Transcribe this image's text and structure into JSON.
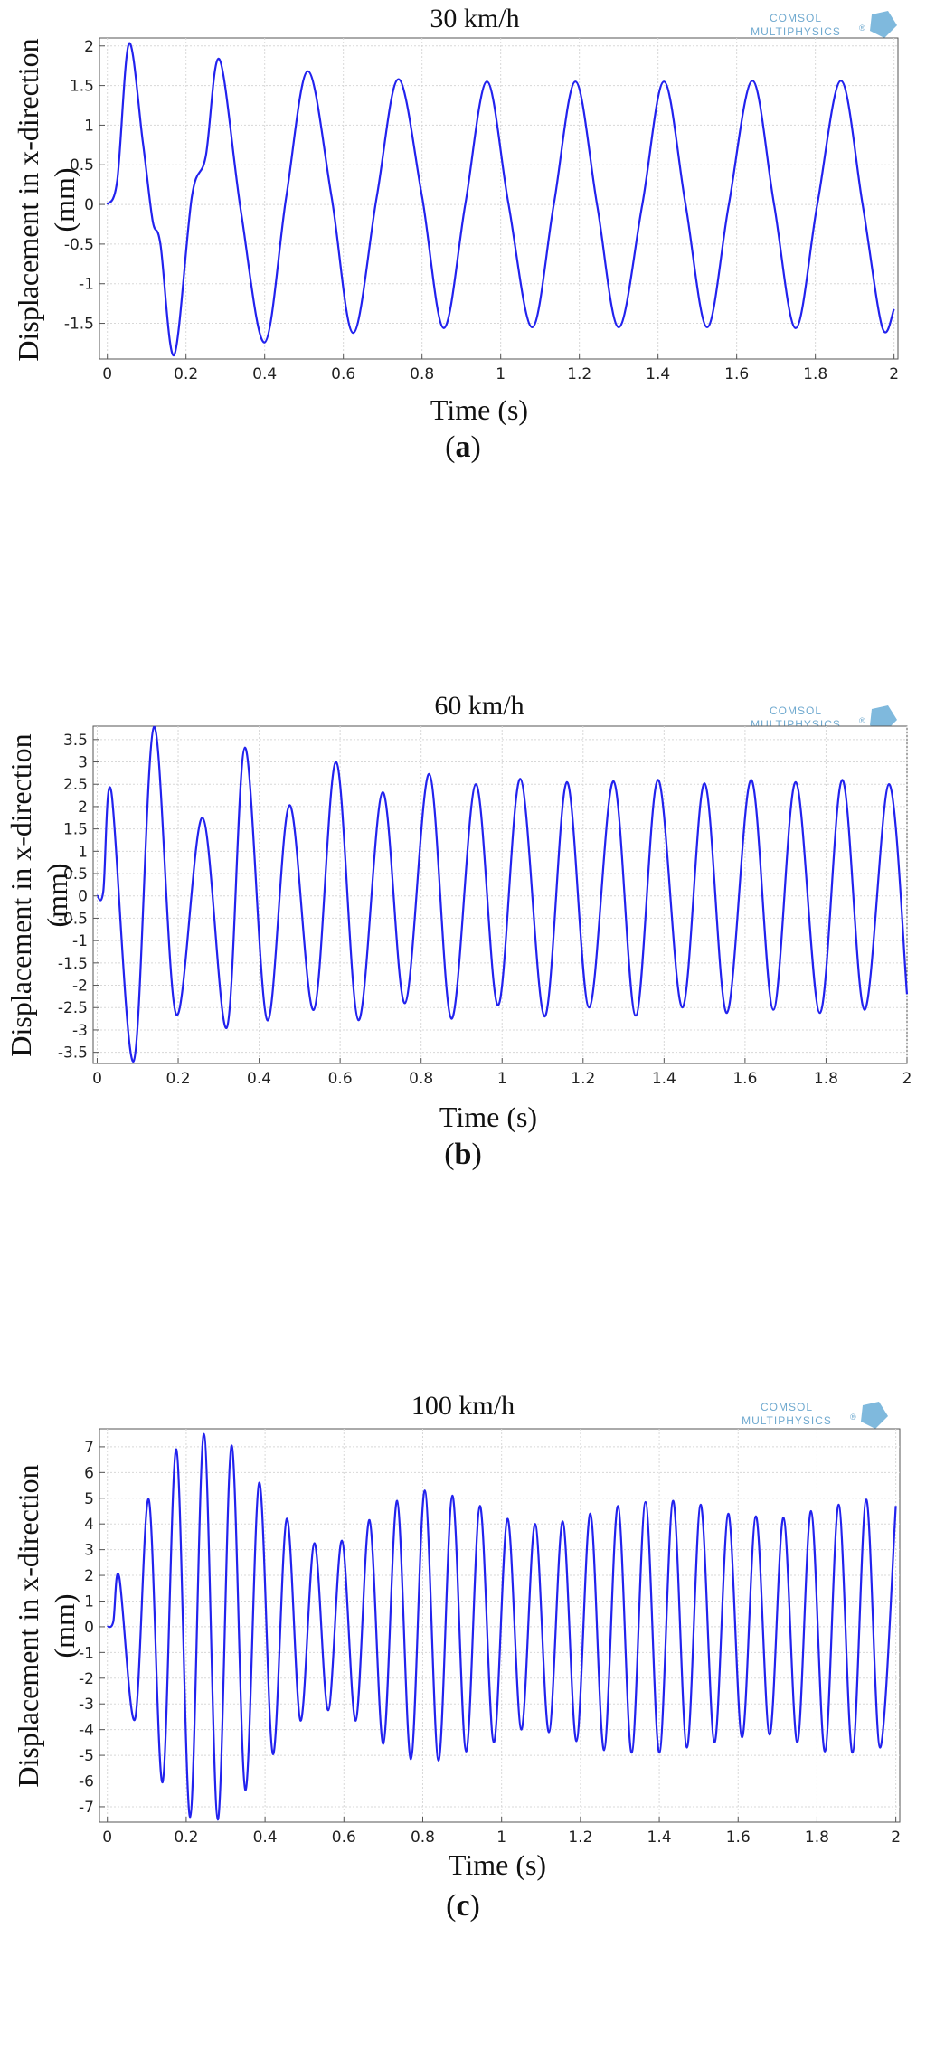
{
  "figure": {
    "ylabel_line1": "Displacement in x-direction",
    "ylabel_line2": "(mm)",
    "xlabel": "Time (s)",
    "logo_line1": "COMSOL",
    "logo_line2": "MULTIPHYSICS",
    "logo_mark": "®"
  },
  "colors": {
    "line": "#2222ee",
    "grid": "#d8d8d8",
    "axis": "#555555"
  },
  "chart_data": [
    {
      "type": "line",
      "title": "30 km/h",
      "caption_open": "(",
      "caption_letter": "a",
      "caption_close": ")",
      "xlabel": "Time (s)",
      "ylabel": "Displacement in x-direction (mm)",
      "xlim": [
        -0.02,
        2.01
      ],
      "ylim": [
        -1.95,
        2.1
      ],
      "xticks": [
        0,
        0.2,
        0.4,
        0.6,
        0.8,
        1,
        1.2,
        1.4,
        1.6,
        1.8,
        2
      ],
      "xtick_labels": [
        "0",
        "0.2",
        "0.4",
        "0.6",
        "0.8",
        "1",
        "1.2",
        "1.4",
        "1.6",
        "1.8",
        "2"
      ],
      "yticks": [
        -1.5,
        -1,
        -0.5,
        0,
        0.5,
        1,
        1.5,
        2
      ],
      "ytick_labels": [
        "-1.5",
        "-1",
        "-0.5",
        "0",
        "0.5",
        "1",
        "1.5",
        "2"
      ],
      "series": [
        {
          "name": "Displacement",
          "x": [
            0,
            0.025,
            0.055,
            0.09,
            0.115,
            0.135,
            0.17,
            0.215,
            0.25,
            0.285,
            0.34,
            0.4,
            0.455,
            0.51,
            0.57,
            0.625,
            0.685,
            0.74,
            0.8,
            0.855,
            0.91,
            0.965,
            1.02,
            1.08,
            1.135,
            1.19,
            1.245,
            1.3,
            1.36,
            1.415,
            1.47,
            1.525,
            1.58,
            1.64,
            1.695,
            1.75,
            1.805,
            1.865,
            1.92,
            1.97,
            2.0
          ],
          "y": [
            0,
            0.3,
            2.03,
            0.8,
            -0.2,
            -0.5,
            -1.9,
            0.1,
            0.6,
            1.83,
            -0.1,
            -1.74,
            0.1,
            1.68,
            0.1,
            -1.62,
            0.1,
            1.58,
            0.1,
            -1.56,
            0.0,
            1.55,
            0.0,
            -1.55,
            0.0,
            1.55,
            0.0,
            -1.55,
            0.0,
            1.55,
            0.0,
            -1.55,
            0.0,
            1.56,
            0.0,
            -1.56,
            0.0,
            1.56,
            0.0,
            -1.55,
            -1.32
          ]
        }
      ]
    },
    {
      "type": "line",
      "title": "60 km/h",
      "caption_open": "(",
      "caption_letter": "b",
      "caption_close": ")",
      "xlabel": "Time (s)",
      "ylabel": "Displacement in x-direction (mm)",
      "xlim": [
        -0.01,
        2.0
      ],
      "ylim": [
        -3.75,
        3.8
      ],
      "xticks": [
        0,
        0.2,
        0.4,
        0.6,
        0.8,
        1,
        1.2,
        1.4,
        1.6,
        1.8,
        2
      ],
      "xtick_labels": [
        "0",
        "0.2",
        "0.4",
        "0.6",
        "0.8",
        "1",
        "1.2",
        "1.4",
        "1.6",
        "1.8",
        "2"
      ],
      "yticks": [
        -3.5,
        -3,
        -2.5,
        -2,
        -1.5,
        -1,
        -0.5,
        0,
        0.5,
        1,
        1.5,
        2,
        2.5,
        3,
        3.5
      ],
      "ytick_labels": [
        "-3.5",
        "-3",
        "-2.5",
        "-2",
        "-1.5",
        "-1",
        "-0.5",
        "0",
        "0.5",
        "1",
        "1.5",
        "2",
        "2.5",
        "3",
        "3.5"
      ],
      "series": [
        {
          "name": "Displacement",
          "x": [
            0,
            0.015,
            0.035,
            0.09,
            0.14,
            0.195,
            0.26,
            0.32,
            0.365,
            0.42,
            0.475,
            0.535,
            0.59,
            0.645,
            0.705,
            0.76,
            0.82,
            0.875,
            0.935,
            0.99,
            1.045,
            1.105,
            1.16,
            1.215,
            1.275,
            1.33,
            1.385,
            1.445,
            1.5,
            1.555,
            1.615,
            1.67,
            1.725,
            1.785,
            1.84,
            1.895,
            1.955,
            2.0
          ],
          "y": [
            0,
            0.1,
            2.33,
            -3.7,
            3.78,
            -2.65,
            1.75,
            -2.95,
            3.32,
            -2.78,
            2.03,
            -2.55,
            3.0,
            -2.78,
            2.32,
            -2.4,
            2.73,
            -2.75,
            2.5,
            -2.45,
            2.62,
            -2.7,
            2.55,
            -2.5,
            2.57,
            -2.68,
            2.6,
            -2.5,
            2.52,
            -2.62,
            2.6,
            -2.55,
            2.55,
            -2.62,
            2.6,
            -2.55,
            2.5,
            -2.2
          ]
        }
      ]
    },
    {
      "type": "line",
      "title": "100 km/h",
      "caption_open": "(",
      "caption_letter": "c",
      "caption_close": ")",
      "xlabel": "Time (s)",
      "ylabel": "Displacement in x-direction (mm)",
      "xlim": [
        -0.02,
        2.01
      ],
      "ylim": [
        -7.6,
        7.7
      ],
      "xticks": [
        0,
        0.2,
        0.4,
        0.6,
        0.8,
        1,
        1.2,
        1.4,
        1.6,
        1.8,
        2
      ],
      "xtick_labels": [
        "0",
        "0.2",
        "0.4",
        "0.6",
        "0.8",
        "1",
        "1.2",
        "1.4",
        "1.6",
        "1.8",
        "2"
      ],
      "yticks": [
        -7,
        -6,
        -5,
        -4,
        -3,
        -2,
        -1,
        0,
        1,
        2,
        3,
        4,
        5,
        6,
        7
      ],
      "ytick_labels": [
        "-7",
        "-6",
        "-5",
        "-4",
        "-3",
        "-2",
        "-1",
        "0",
        "1",
        "2",
        "3",
        "4",
        "5",
        "6",
        "7"
      ],
      "series": [
        {
          "name": "Displacement",
          "x": [
            0,
            0.015,
            0.03,
            0.07,
            0.105,
            0.14,
            0.175,
            0.21,
            0.245,
            0.28,
            0.315,
            0.35,
            0.385,
            0.42,
            0.455,
            0.49,
            0.525,
            0.56,
            0.595,
            0.63,
            0.665,
            0.7,
            0.735,
            0.77,
            0.805,
            0.84,
            0.875,
            0.91,
            0.945,
            0.98,
            1.015,
            1.05,
            1.085,
            1.12,
            1.155,
            1.19,
            1.225,
            1.26,
            1.295,
            1.33,
            1.365,
            1.4,
            1.435,
            1.47,
            1.505,
            1.54,
            1.575,
            1.61,
            1.645,
            1.68,
            1.715,
            1.75,
            1.785,
            1.82,
            1.855,
            1.89,
            1.925,
            1.96,
            2.0
          ],
          "y": [
            0,
            0.2,
            1.95,
            -3.6,
            4.95,
            -6.05,
            6.9,
            -7.4,
            7.5,
            -7.5,
            7.05,
            -6.35,
            5.6,
            -4.95,
            4.2,
            -3.65,
            3.25,
            -3.25,
            3.35,
            -3.65,
            4.15,
            -4.55,
            4.9,
            -5.15,
            5.3,
            -5.2,
            5.1,
            -4.85,
            4.7,
            -4.5,
            4.2,
            -4.0,
            4.0,
            -4.1,
            4.1,
            -4.45,
            4.4,
            -4.8,
            4.7,
            -4.9,
            4.85,
            -4.9,
            4.9,
            -4.7,
            4.75,
            -4.5,
            4.4,
            -4.3,
            4.3,
            -4.2,
            4.25,
            -4.5,
            4.5,
            -4.85,
            4.75,
            -4.9,
            4.95,
            -4.7,
            4.7
          ]
        }
      ]
    }
  ]
}
